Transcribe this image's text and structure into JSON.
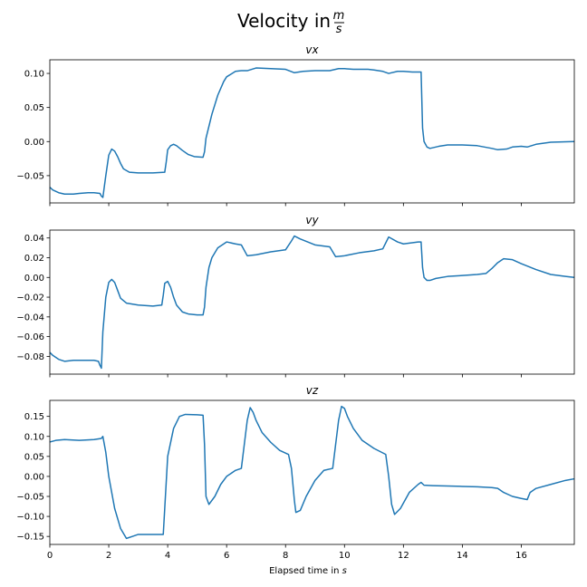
{
  "figure": {
    "title_text": "Velocity in",
    "title_unit_num": "m",
    "title_unit_den": "s",
    "xlabel_text": "Elapsed time in",
    "xlabel_unit": "s"
  },
  "chart_data": [
    {
      "type": "line",
      "title": "vx",
      "xlim": [
        0,
        17.8
      ],
      "ylim": [
        -0.09,
        0.12
      ],
      "yticks": [
        -0.05,
        0.0,
        0.05,
        0.1
      ],
      "ytick_labels": [
        "−0.05",
        "0.00",
        "0.05",
        "0.10"
      ],
      "xticks": [
        0,
        2,
        4,
        6,
        8,
        10,
        12,
        14,
        16
      ],
      "show_xtick_labels": false,
      "color": "#1f77b4",
      "x": [
        0.0,
        0.1,
        0.3,
        0.5,
        0.8,
        1.0,
        1.3,
        1.5,
        1.7,
        1.75,
        1.8,
        1.9,
        2.0,
        2.1,
        2.2,
        2.3,
        2.4,
        2.5,
        2.7,
        3.0,
        3.5,
        3.9,
        3.95,
        4.0,
        4.1,
        4.2,
        4.3,
        4.5,
        4.7,
        4.9,
        5.2,
        5.25,
        5.3,
        5.5,
        5.7,
        5.9,
        6.0,
        6.3,
        6.5,
        6.7,
        7.0,
        7.5,
        8.0,
        8.3,
        8.6,
        9.0,
        9.5,
        9.8,
        10.0,
        10.3,
        10.8,
        11.0,
        11.3,
        11.5,
        11.8,
        12.0,
        12.3,
        12.6,
        12.65,
        12.7,
        12.8,
        12.9,
        13.0,
        13.2,
        13.5,
        14.0,
        14.5,
        15.0,
        15.2,
        15.5,
        15.7,
        16.0,
        16.2,
        16.5,
        17.0,
        17.8
      ],
      "values": [
        -0.067,
        -0.071,
        -0.075,
        -0.077,
        -0.077,
        -0.076,
        -0.075,
        -0.075,
        -0.076,
        -0.08,
        -0.082,
        -0.05,
        -0.02,
        -0.011,
        -0.014,
        -0.022,
        -0.032,
        -0.04,
        -0.045,
        -0.046,
        -0.046,
        -0.045,
        -0.03,
        -0.012,
        -0.006,
        -0.004,
        -0.006,
        -0.013,
        -0.019,
        -0.022,
        -0.023,
        -0.015,
        0.005,
        0.04,
        0.068,
        0.088,
        0.095,
        0.103,
        0.104,
        0.104,
        0.108,
        0.107,
        0.106,
        0.101,
        0.103,
        0.104,
        0.104,
        0.107,
        0.107,
        0.106,
        0.106,
        0.105,
        0.103,
        0.1,
        0.103,
        0.103,
        0.102,
        0.102,
        0.02,
        0.0,
        -0.008,
        -0.01,
        -0.009,
        -0.007,
        -0.005,
        -0.005,
        -0.006,
        -0.01,
        -0.012,
        -0.011,
        -0.008,
        -0.007,
        -0.008,
        -0.004,
        -0.001,
        0.0
      ]
    },
    {
      "type": "line",
      "title": "vy",
      "xlim": [
        0,
        17.8
      ],
      "ylim": [
        -0.098,
        0.048
      ],
      "yticks": [
        -0.08,
        -0.06,
        -0.04,
        -0.02,
        0.0,
        0.02,
        0.04
      ],
      "ytick_labels": [
        "−0.08",
        "−0.06",
        "−0.04",
        "−0.02",
        "0.00",
        "0.02",
        "0.04"
      ],
      "xticks": [
        0,
        2,
        4,
        6,
        8,
        10,
        12,
        14,
        16
      ],
      "show_xtick_labels": false,
      "color": "#1f77b4",
      "x": [
        0.0,
        0.1,
        0.3,
        0.5,
        0.8,
        1.0,
        1.2,
        1.5,
        1.65,
        1.7,
        1.75,
        1.8,
        1.9,
        2.0,
        2.1,
        2.2,
        2.3,
        2.4,
        2.6,
        3.0,
        3.5,
        3.8,
        3.85,
        3.9,
        4.0,
        4.1,
        4.2,
        4.3,
        4.5,
        4.7,
        5.0,
        5.2,
        5.25,
        5.3,
        5.4,
        5.5,
        5.7,
        6.0,
        6.3,
        6.5,
        6.7,
        7.0,
        7.5,
        8.0,
        8.2,
        8.3,
        8.5,
        9.0,
        9.5,
        9.7,
        10.0,
        10.5,
        11.0,
        11.3,
        11.5,
        11.8,
        12.0,
        12.5,
        12.6,
        12.65,
        12.7,
        12.8,
        12.9,
        13.1,
        13.5,
        14.0,
        14.5,
        14.8,
        15.0,
        15.2,
        15.4,
        15.7,
        16.0,
        16.5,
        17.0,
        17.5,
        17.8
      ],
      "values": [
        -0.076,
        -0.079,
        -0.083,
        -0.085,
        -0.084,
        -0.084,
        -0.084,
        -0.084,
        -0.085,
        -0.089,
        -0.092,
        -0.055,
        -0.02,
        -0.005,
        -0.002,
        -0.005,
        -0.013,
        -0.021,
        -0.026,
        -0.028,
        -0.029,
        -0.028,
        -0.018,
        -0.006,
        -0.004,
        -0.01,
        -0.02,
        -0.028,
        -0.035,
        -0.037,
        -0.038,
        -0.038,
        -0.03,
        -0.01,
        0.01,
        0.02,
        0.03,
        0.036,
        0.034,
        0.033,
        0.022,
        0.023,
        0.026,
        0.028,
        0.037,
        0.042,
        0.039,
        0.033,
        0.031,
        0.021,
        0.022,
        0.025,
        0.027,
        0.029,
        0.041,
        0.036,
        0.034,
        0.036,
        0.036,
        0.01,
        0.0,
        -0.003,
        -0.003,
        -0.001,
        0.001,
        0.002,
        0.003,
        0.004,
        0.009,
        0.015,
        0.019,
        0.018,
        0.014,
        0.008,
        0.003,
        0.001,
        0.0
      ]
    },
    {
      "type": "line",
      "title": "vz",
      "xlim": [
        0,
        17.8
      ],
      "ylim": [
        -0.17,
        0.19
      ],
      "yticks": [
        -0.15,
        -0.1,
        -0.05,
        0.0,
        0.05,
        0.1,
        0.15
      ],
      "ytick_labels": [
        "−0.15",
        "−0.10",
        "−0.05",
        "0.00",
        "0.05",
        "0.10",
        "0.15"
      ],
      "xticks": [
        0,
        2,
        4,
        6,
        8,
        10,
        12,
        14,
        16
      ],
      "xtick_labels": [
        "0",
        "2",
        "4",
        "6",
        "8",
        "10",
        "12",
        "14",
        "16"
      ],
      "show_xtick_labels": true,
      "color": "#1f77b4",
      "x": [
        0.0,
        0.2,
        0.5,
        1.0,
        1.5,
        1.75,
        1.8,
        1.9,
        2.0,
        2.2,
        2.4,
        2.6,
        2.8,
        3.0,
        3.5,
        3.85,
        3.9,
        4.0,
        4.2,
        4.4,
        4.6,
        5.0,
        5.2,
        5.25,
        5.3,
        5.4,
        5.6,
        5.8,
        6.0,
        6.3,
        6.5,
        6.7,
        6.8,
        6.9,
        7.0,
        7.2,
        7.5,
        7.8,
        8.1,
        8.2,
        8.3,
        8.35,
        8.5,
        8.7,
        9.0,
        9.3,
        9.6,
        9.8,
        9.9,
        10.0,
        10.1,
        10.3,
        10.6,
        11.0,
        11.4,
        11.5,
        11.6,
        11.7,
        11.9,
        12.2,
        12.5,
        12.6,
        12.7,
        13.0,
        13.5,
        14.0,
        14.5,
        15.0,
        15.2,
        15.4,
        15.7,
        16.0,
        16.2,
        16.3,
        16.5,
        17.0,
        17.5,
        17.8
      ],
      "values": [
        0.086,
        0.09,
        0.092,
        0.09,
        0.092,
        0.095,
        0.1,
        0.06,
        0.0,
        -0.08,
        -0.13,
        -0.155,
        -0.15,
        -0.145,
        -0.145,
        -0.145,
        -0.08,
        0.05,
        0.12,
        0.15,
        0.155,
        0.154,
        0.153,
        0.08,
        -0.05,
        -0.07,
        -0.05,
        -0.02,
        0.0,
        0.015,
        0.02,
        0.14,
        0.172,
        0.16,
        0.14,
        0.11,
        0.085,
        0.065,
        0.055,
        0.02,
        -0.06,
        -0.09,
        -0.085,
        -0.05,
        -0.01,
        0.015,
        0.02,
        0.14,
        0.175,
        0.17,
        0.15,
        0.12,
        0.09,
        0.07,
        0.055,
        0.0,
        -0.07,
        -0.095,
        -0.08,
        -0.04,
        -0.02,
        -0.015,
        -0.022,
        -0.023,
        -0.024,
        -0.025,
        -0.026,
        -0.028,
        -0.03,
        -0.04,
        -0.05,
        -0.055,
        -0.058,
        -0.04,
        -0.03,
        -0.02,
        -0.01,
        -0.006
      ]
    }
  ]
}
